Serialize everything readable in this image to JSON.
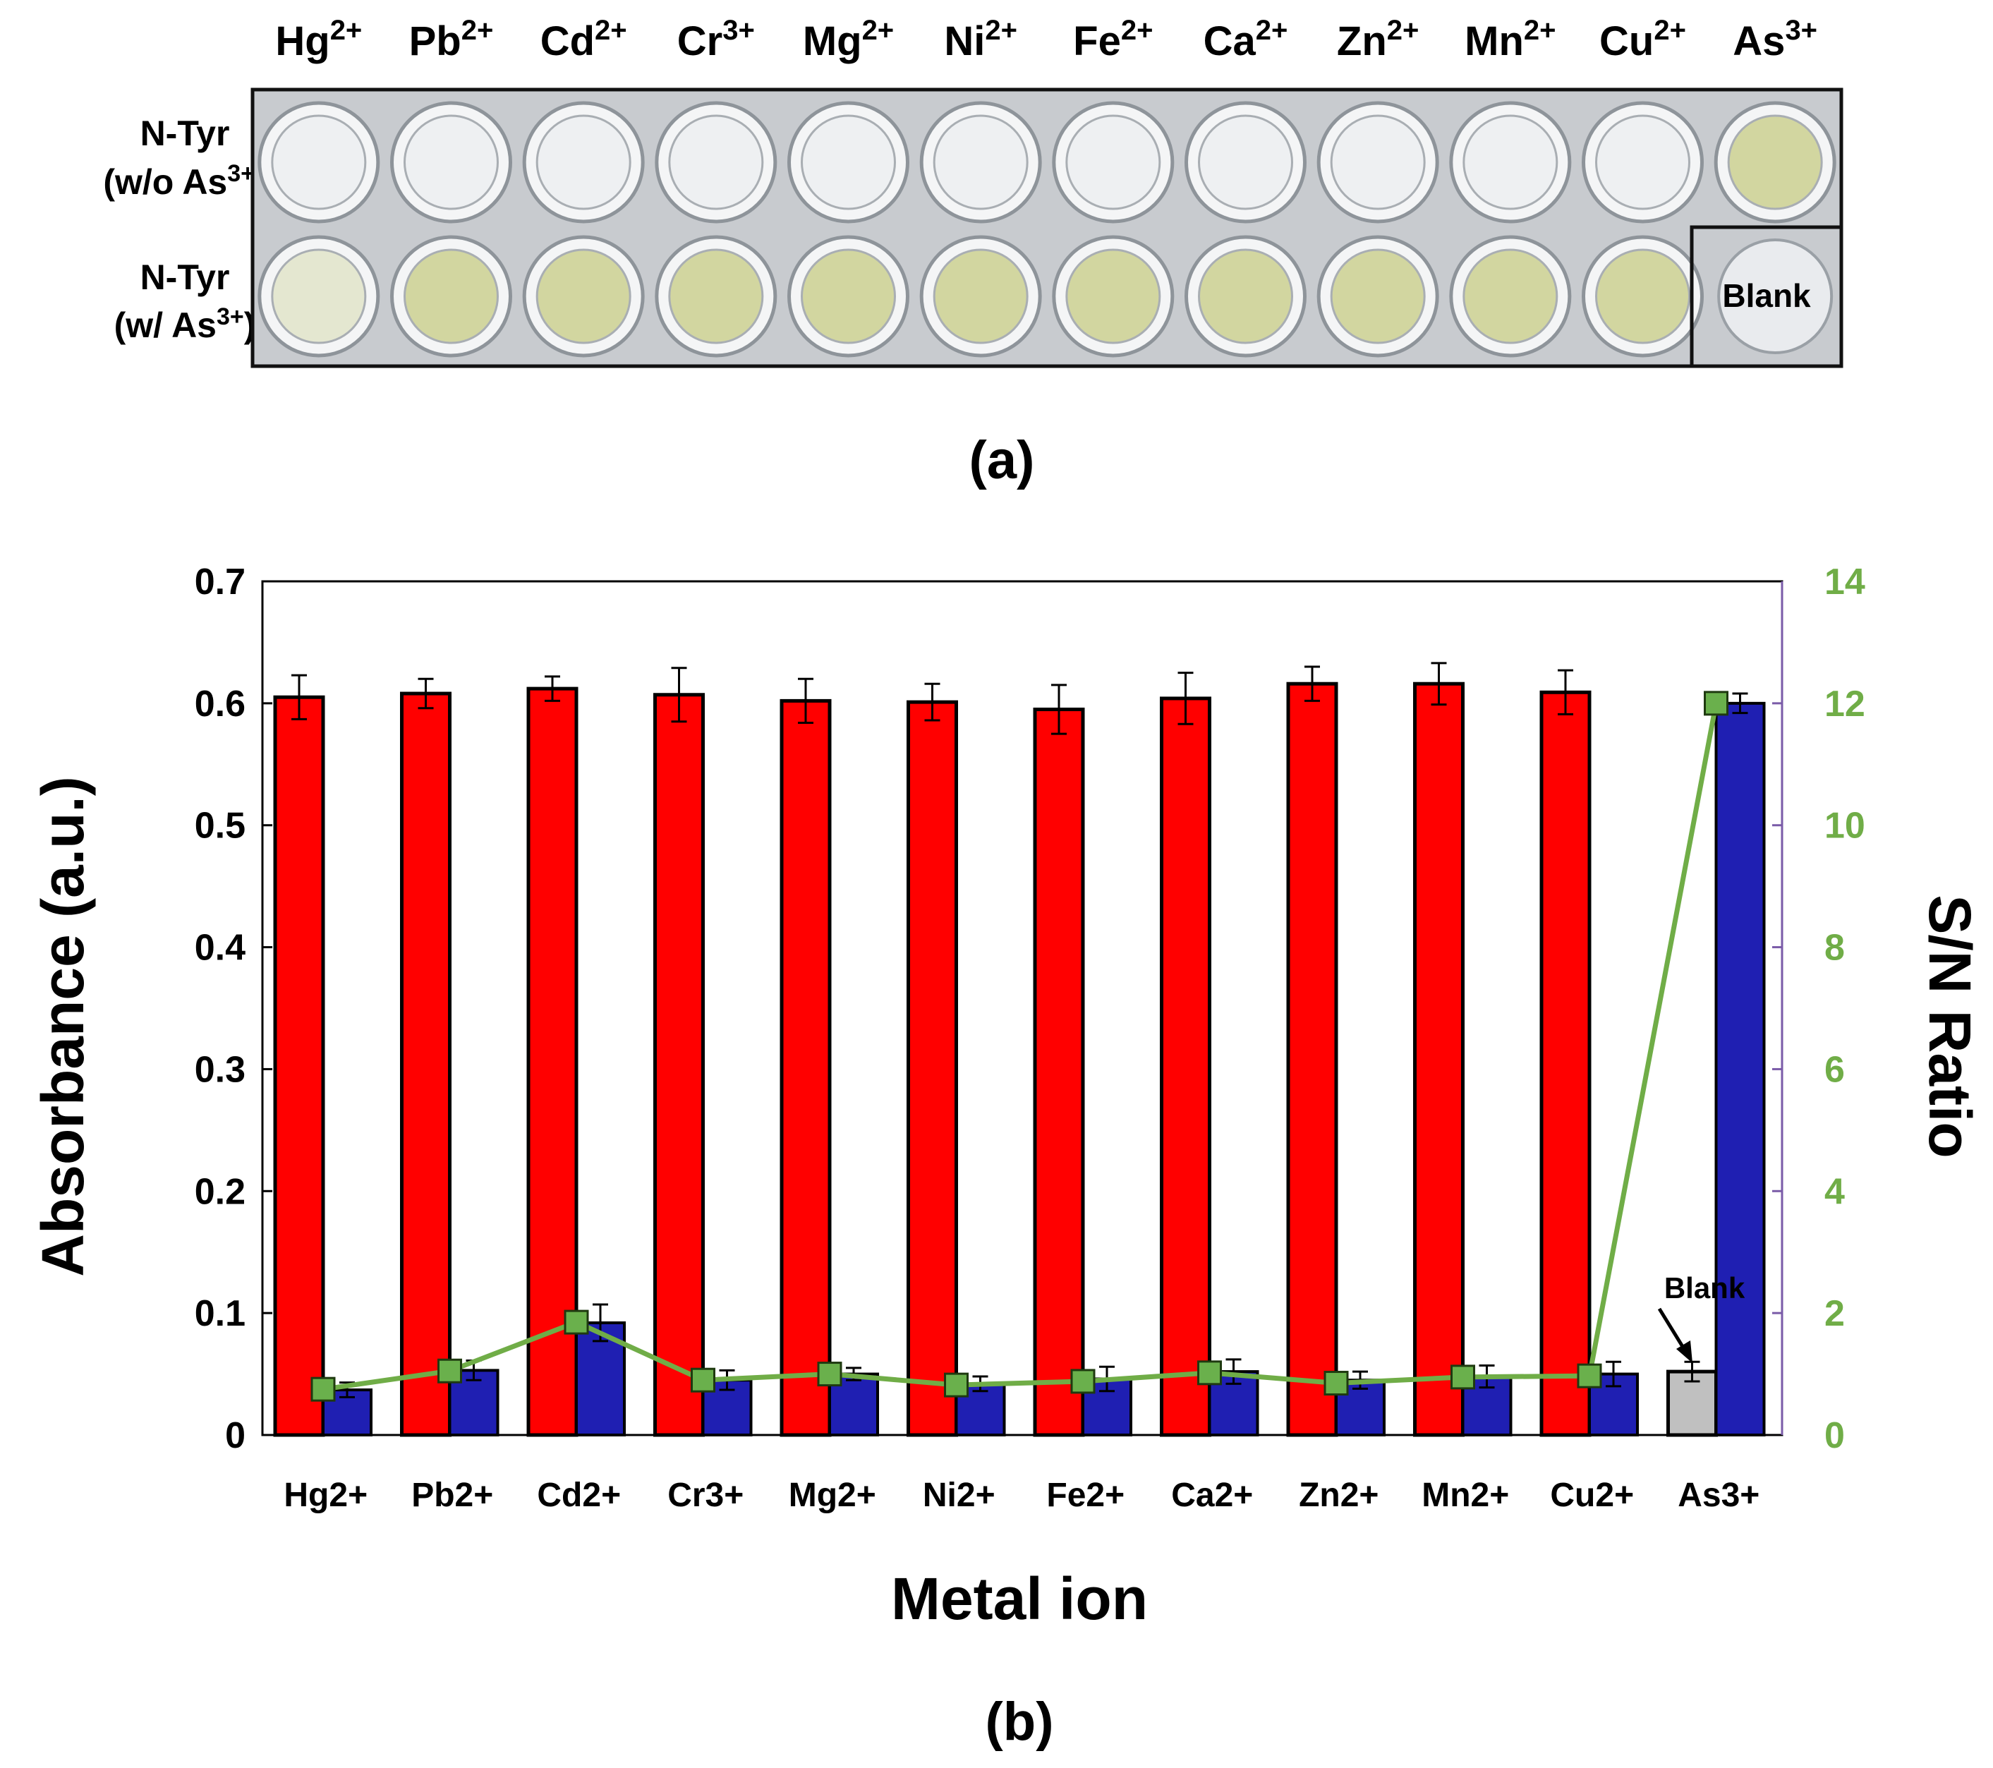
{
  "panel_a": {
    "caption": "(a)",
    "ions": [
      {
        "base": "Hg",
        "sup": "2+"
      },
      {
        "base": "Pb",
        "sup": "2+"
      },
      {
        "base": "Cd",
        "sup": "2+"
      },
      {
        "base": "Cr",
        "sup": "3+"
      },
      {
        "base": "Mg",
        "sup": "2+"
      },
      {
        "base": "Ni",
        "sup": "2+"
      },
      {
        "base": "Fe",
        "sup": "2+"
      },
      {
        "base": "Ca",
        "sup": "2+"
      },
      {
        "base": "Zn",
        "sup": "2+"
      },
      {
        "base": "Mn",
        "sup": "2+"
      },
      {
        "base": "Cu",
        "sup": "2+"
      },
      {
        "base": "As",
        "sup": "3+"
      }
    ],
    "row1": {
      "line1": "N-Tyr",
      "line2_pre": "(w/o As",
      "line2_sup": "3+",
      "line2_post": ")",
      "color": "#1a1adb"
    },
    "row2": {
      "line1": "N-Tyr",
      "line2_pre": "(w/ As",
      "line2_sup": "3+",
      "line2_post": ")",
      "color": "#e01010"
    },
    "blank_label": "Blank",
    "well_colors": {
      "clear": "#eef0f2",
      "yellow": "#d2d6a0",
      "bg": "#c8cbcf"
    }
  },
  "chart_data": {
    "type": "bar",
    "title": "",
    "caption": "(b)",
    "xlabel": "Metal ion",
    "ylabel": "Absorbance (a.u.)",
    "y2label": "S/N Ratio",
    "ylim": [
      0,
      0.7
    ],
    "yticks": [
      "0",
      "0.1",
      "0.2",
      "0.3",
      "0.4",
      "0.5",
      "0.6",
      "0.7"
    ],
    "y2lim": [
      0,
      14
    ],
    "y2ticks": [
      "0",
      "2",
      "4",
      "6",
      "8",
      "10",
      "12",
      "14"
    ],
    "categories": [
      "Hg2+",
      "Pb2+",
      "Cd2+",
      "Cr3+",
      "Mg2+",
      "Ni2+",
      "Fe2+",
      "Ca2+",
      "Zn2+",
      "Mn2+",
      "Cu2+",
      "As3+"
    ],
    "series": [
      {
        "name": "N-Tyr (w/ As3+)",
        "color": "#ff0000",
        "values": [
          0.605,
          0.608,
          0.612,
          0.607,
          0.602,
          0.601,
          0.595,
          0.604,
          0.616,
          0.616,
          0.609,
          null
        ],
        "errors": [
          0.018,
          0.012,
          0.01,
          0.022,
          0.018,
          0.015,
          0.02,
          0.021,
          0.014,
          0.017,
          0.018,
          null
        ]
      },
      {
        "name": "N-Tyr (w/o As3+)",
        "color": "#1f1fb2",
        "values": [
          0.037,
          0.053,
          0.092,
          0.045,
          0.05,
          0.042,
          0.046,
          0.052,
          0.045,
          0.048,
          0.05,
          0.6
        ],
        "errors": [
          0.006,
          0.008,
          0.015,
          0.008,
          0.005,
          0.006,
          0.01,
          0.01,
          0.007,
          0.009,
          0.01,
          0.008
        ]
      },
      {
        "name": "Blank",
        "color": "#c0c0c0",
        "category": "As3+",
        "value": 0.052,
        "error": 0.008
      }
    ],
    "sn_ratio": {
      "name": "S/N Ratio",
      "color": "#70ad47",
      "marker_color": "#6ab04c",
      "values": [
        0.75,
        1.05,
        1.85,
        0.9,
        1.0,
        0.82,
        0.88,
        1.02,
        0.85,
        0.95,
        0.97,
        12.0
      ]
    },
    "annotation": "Blank",
    "axis_colors": {
      "left": "#000000",
      "right_line": "#7a5ba8",
      "right_text": "#70ad47"
    }
  }
}
